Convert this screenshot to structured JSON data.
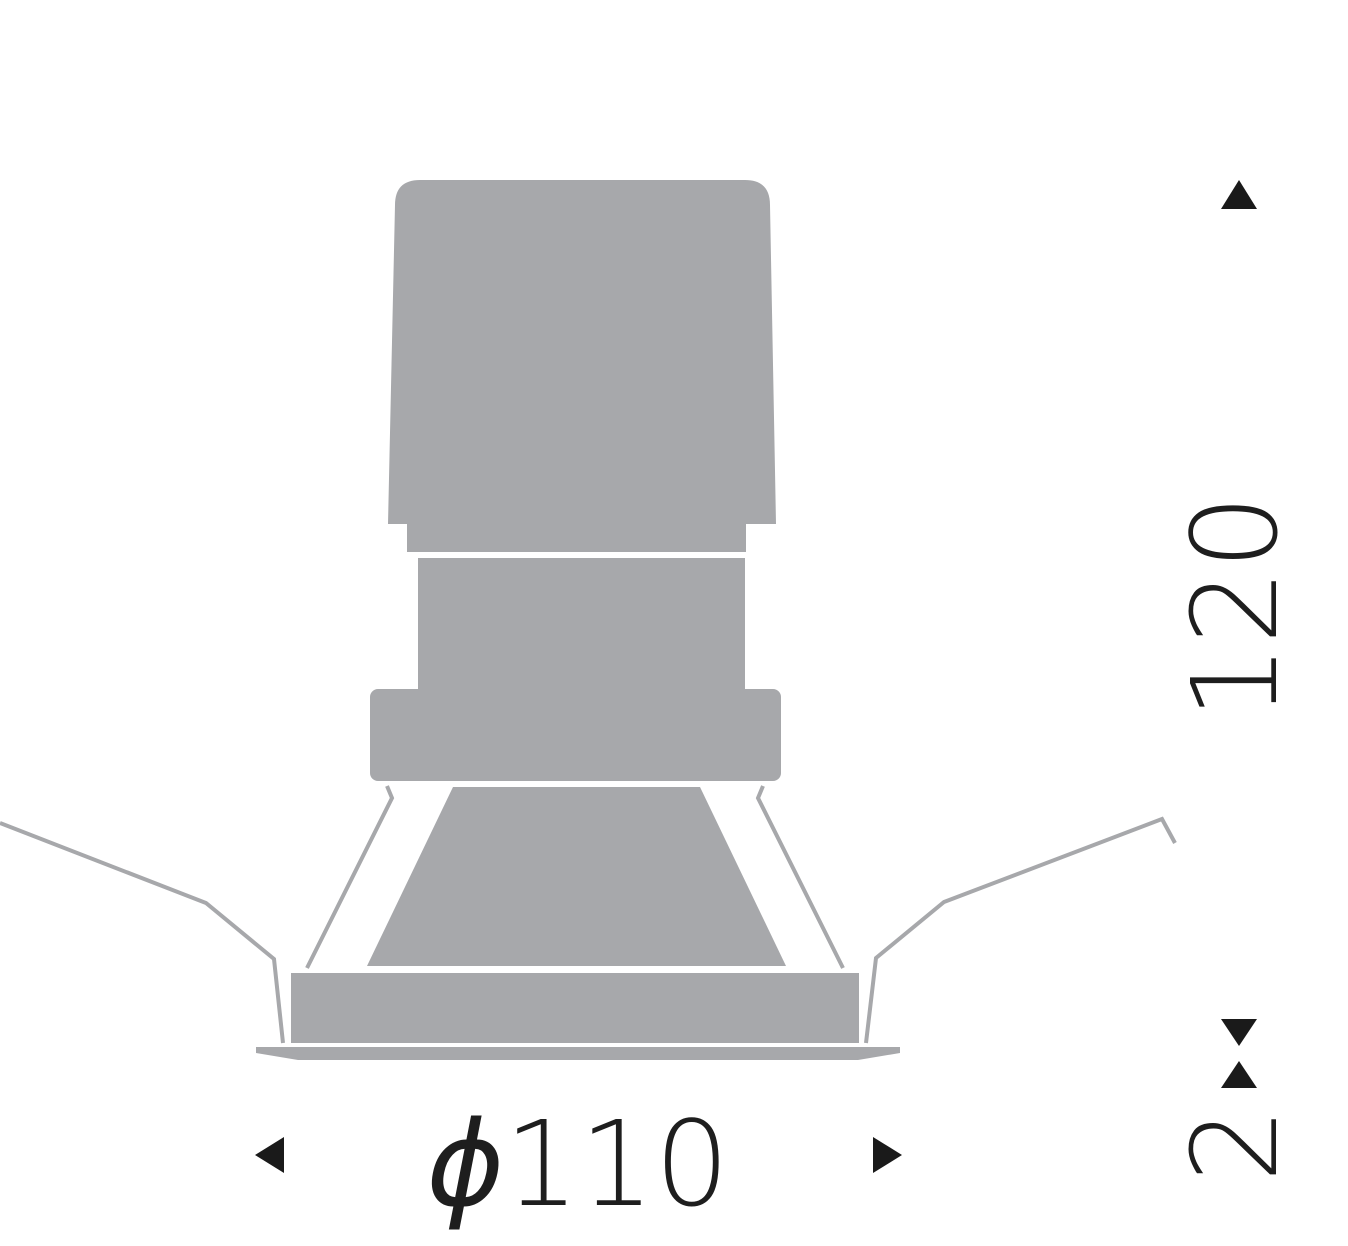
{
  "dimensions": {
    "diameter": {
      "symbol": "ϕ",
      "value": "110"
    },
    "height": {
      "value": "120"
    },
    "trim": {
      "value": "2"
    }
  },
  "colors": {
    "body_fill": "#a7a8ab",
    "spring_line": "#a7a8ab",
    "arrow": "#1a1a1a",
    "text": "#1e1e1e",
    "background": "#ffffff"
  }
}
